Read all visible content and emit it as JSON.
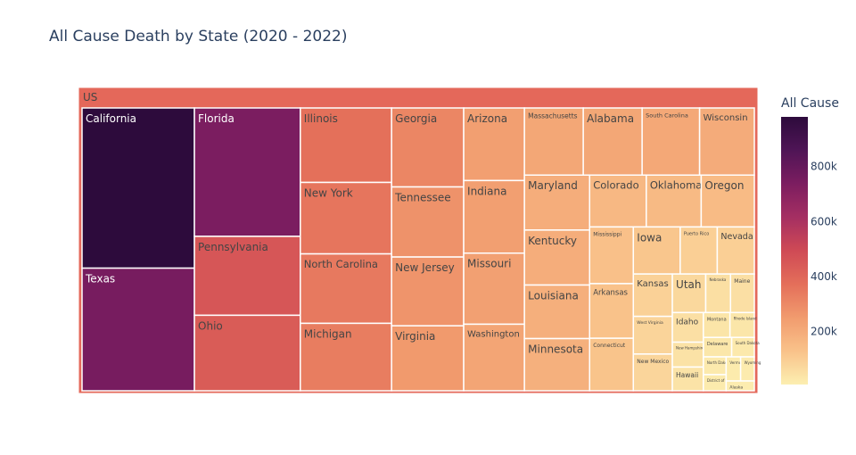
{
  "chart_data": {
    "type": "treemap",
    "title": "All Cause Death by State (2020 - 2022)",
    "root_label": "US",
    "colorbar": {
      "title": "All Cause",
      "tick_labels": [
        "200k",
        "400k",
        "600k",
        "800k"
      ],
      "tick_values": [
        200000,
        400000,
        600000,
        800000
      ],
      "range": [
        8000,
        980000
      ],
      "colorscale": [
        "#fcefb1",
        "#f9c28a",
        "#f19b6e",
        "#e46f5a",
        "#cf4a55",
        "#a52f62",
        "#7c1d60",
        "#4f1556",
        "#2d0b3c"
      ]
    },
    "states": [
      {
        "name": "California",
        "value": 980000
      },
      {
        "name": "Texas",
        "value": 750000
      },
      {
        "name": "Florida",
        "value": 740000
      },
      {
        "name": "Pennsylvania",
        "value": 455000
      },
      {
        "name": "Ohio",
        "value": 435000
      },
      {
        "name": "Illinois",
        "value": 370000
      },
      {
        "name": "New York",
        "value": 355000
      },
      {
        "name": "North Carolina",
        "value": 345000
      },
      {
        "name": "Michigan",
        "value": 335000
      },
      {
        "name": "Georgia",
        "value": 310000
      },
      {
        "name": "Tennessee",
        "value": 275000
      },
      {
        "name": "New Jersey",
        "value": 270000
      },
      {
        "name": "Virginia",
        "value": 255000
      },
      {
        "name": "Arizona",
        "value": 240000
      },
      {
        "name": "Indiana",
        "value": 240000
      },
      {
        "name": "Missouri",
        "value": 235000
      },
      {
        "name": "Washington",
        "value": 220000
      },
      {
        "name": "Massachusetts",
        "value": 215000
      },
      {
        "name": "Maryland",
        "value": 195000
      },
      {
        "name": "Kentucky",
        "value": 195000
      },
      {
        "name": "Louisiana",
        "value": 190000
      },
      {
        "name": "Minnesota",
        "value": 185000
      },
      {
        "name": "Alabama",
        "value": 215000
      },
      {
        "name": "South Carolina",
        "value": 210000
      },
      {
        "name": "Wisconsin",
        "value": 200000
      },
      {
        "name": "Colorado",
        "value": 160000
      },
      {
        "name": "Oklahoma",
        "value": 155000
      },
      {
        "name": "Oregon",
        "value": 150000
      },
      {
        "name": "Mississippi",
        "value": 135000
      },
      {
        "name": "Arkansas",
        "value": 130000
      },
      {
        "name": "Connecticut",
        "value": 125000
      },
      {
        "name": "Iowa",
        "value": 120000
      },
      {
        "name": "Puerto Rico",
        "value": 95000
      },
      {
        "name": "Nevada",
        "value": 95000
      },
      {
        "name": "Kansas",
        "value": 90000
      },
      {
        "name": "West Virginia",
        "value": 80000
      },
      {
        "name": "New Mexico",
        "value": 78000
      },
      {
        "name": "Utah",
        "value": 70000
      },
      {
        "name": "Nebraska",
        "value": 52000
      },
      {
        "name": "Maine",
        "value": 50000
      },
      {
        "name": "New Hampshire",
        "value": 42000
      },
      {
        "name": "Idaho",
        "value": 50000
      },
      {
        "name": "Hawaii",
        "value": 40000
      },
      {
        "name": "Montana",
        "value": 36000
      },
      {
        "name": "Rhode Island",
        "value": 33000
      },
      {
        "name": "Delaware",
        "value": 30000
      },
      {
        "name": "South Dakota",
        "value": 24000
      },
      {
        "name": "North Dakota",
        "value": 22000
      },
      {
        "name": "District of Columbia",
        "value": 20000
      },
      {
        "name": "Vermont",
        "value": 19000
      },
      {
        "name": "Wyoming",
        "value": 18000
      },
      {
        "name": "Alaska",
        "value": 15000
      }
    ]
  }
}
